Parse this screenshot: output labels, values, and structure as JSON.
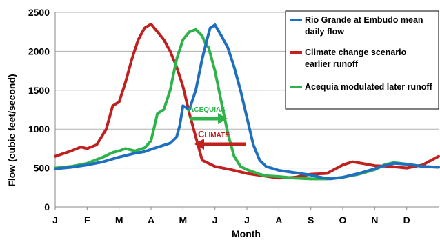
{
  "chart_data": {
    "type": "line",
    "title": "",
    "xlabel": "Month",
    "ylabel": "Flow (cubic feet/second)",
    "ylim": [
      0,
      2500
    ],
    "yticks": [
      0,
      500,
      1000,
      1500,
      2000,
      2500
    ],
    "xlim": [
      0,
      12
    ],
    "xticks": [
      "J",
      "F",
      "M",
      "A",
      "M",
      "J",
      "J",
      "A",
      "S",
      "O",
      "N",
      "D"
    ],
    "grid": "horizontal",
    "legend_position": "top-right",
    "series": [
      {
        "name": "Rio Grande at Embudo mean daily flow",
        "color": "#1f6fc0",
        "x": [
          0,
          0.5,
          1,
          1.5,
          2,
          2.5,
          2.8,
          3,
          3.3,
          3.6,
          3.8,
          3.9,
          4,
          4.2,
          4.4,
          4.6,
          4.75,
          4.85,
          5,
          5.2,
          5.4,
          5.6,
          5.8,
          6,
          6.2,
          6.4,
          6.6,
          7,
          7.5,
          8,
          8.3,
          8.6,
          9,
          9.5,
          10,
          10.3,
          10.6,
          11,
          11.5,
          12
        ],
        "y": [
          490,
          510,
          540,
          580,
          640,
          690,
          710,
          740,
          780,
          820,
          900,
          1050,
          1300,
          1250,
          1500,
          1900,
          2150,
          2300,
          2340,
          2200,
          2050,
          1800,
          1500,
          1150,
          800,
          600,
          520,
          470,
          440,
          410,
          380,
          360,
          380,
          430,
          490,
          530,
          560,
          550,
          520,
          510
        ]
      },
      {
        "name": "Climate change scenario earlier runoff",
        "color": "#c0201e",
        "x": [
          0,
          0.5,
          0.8,
          1,
          1.3,
          1.6,
          1.8,
          2,
          2.2,
          2.4,
          2.6,
          2.8,
          3,
          3.1,
          3.2,
          3.4,
          3.6,
          3.8,
          4,
          4.2,
          4.4,
          4.6,
          5,
          5.5,
          6,
          6.5,
          7,
          7.5,
          8,
          8.5,
          9,
          9.3,
          9.6,
          10,
          10.5,
          11,
          11.5,
          12
        ],
        "y": [
          650,
          720,
          770,
          750,
          800,
          1000,
          1300,
          1350,
          1600,
          1900,
          2150,
          2300,
          2350,
          2300,
          2250,
          2150,
          2000,
          1800,
          1550,
          1200,
          900,
          600,
          520,
          480,
          430,
          400,
          370,
          380,
          420,
          430,
          540,
          580,
          560,
          530,
          520,
          500,
          540,
          650
        ]
      },
      {
        "name": "Acequia modulated later runoff",
        "color": "#2eb34a",
        "x": [
          0,
          0.5,
          1,
          1.5,
          1.8,
          2,
          2.2,
          2.5,
          2.8,
          3,
          3.2,
          3.4,
          3.6,
          3.8,
          4,
          4.2,
          4.4,
          4.6,
          4.7,
          4.8,
          5,
          5.2,
          5.4,
          5.6,
          5.8,
          6,
          6.2,
          6.4,
          6.6,
          7,
          7.5,
          8,
          8.5,
          9,
          9.5,
          10,
          10.3,
          10.6,
          11,
          11.5,
          12
        ],
        "y": [
          500,
          520,
          560,
          640,
          700,
          720,
          750,
          720,
          760,
          850,
          1200,
          1250,
          1500,
          1900,
          2150,
          2250,
          2280,
          2200,
          2100,
          2050,
          1750,
          1350,
          950,
          650,
          520,
          480,
          450,
          420,
          400,
          390,
          370,
          360,
          360,
          380,
          420,
          480,
          540,
          570,
          550,
          520,
          510
        ]
      }
    ],
    "annotations": [
      {
        "text_first": "A",
        "text_rest": "CEQUIAS",
        "color": "#2eb34a",
        "direction": "right"
      },
      {
        "text_first": "C",
        "text_rest": "LIMATE",
        "color": "#c0201e",
        "direction": "left"
      }
    ]
  }
}
